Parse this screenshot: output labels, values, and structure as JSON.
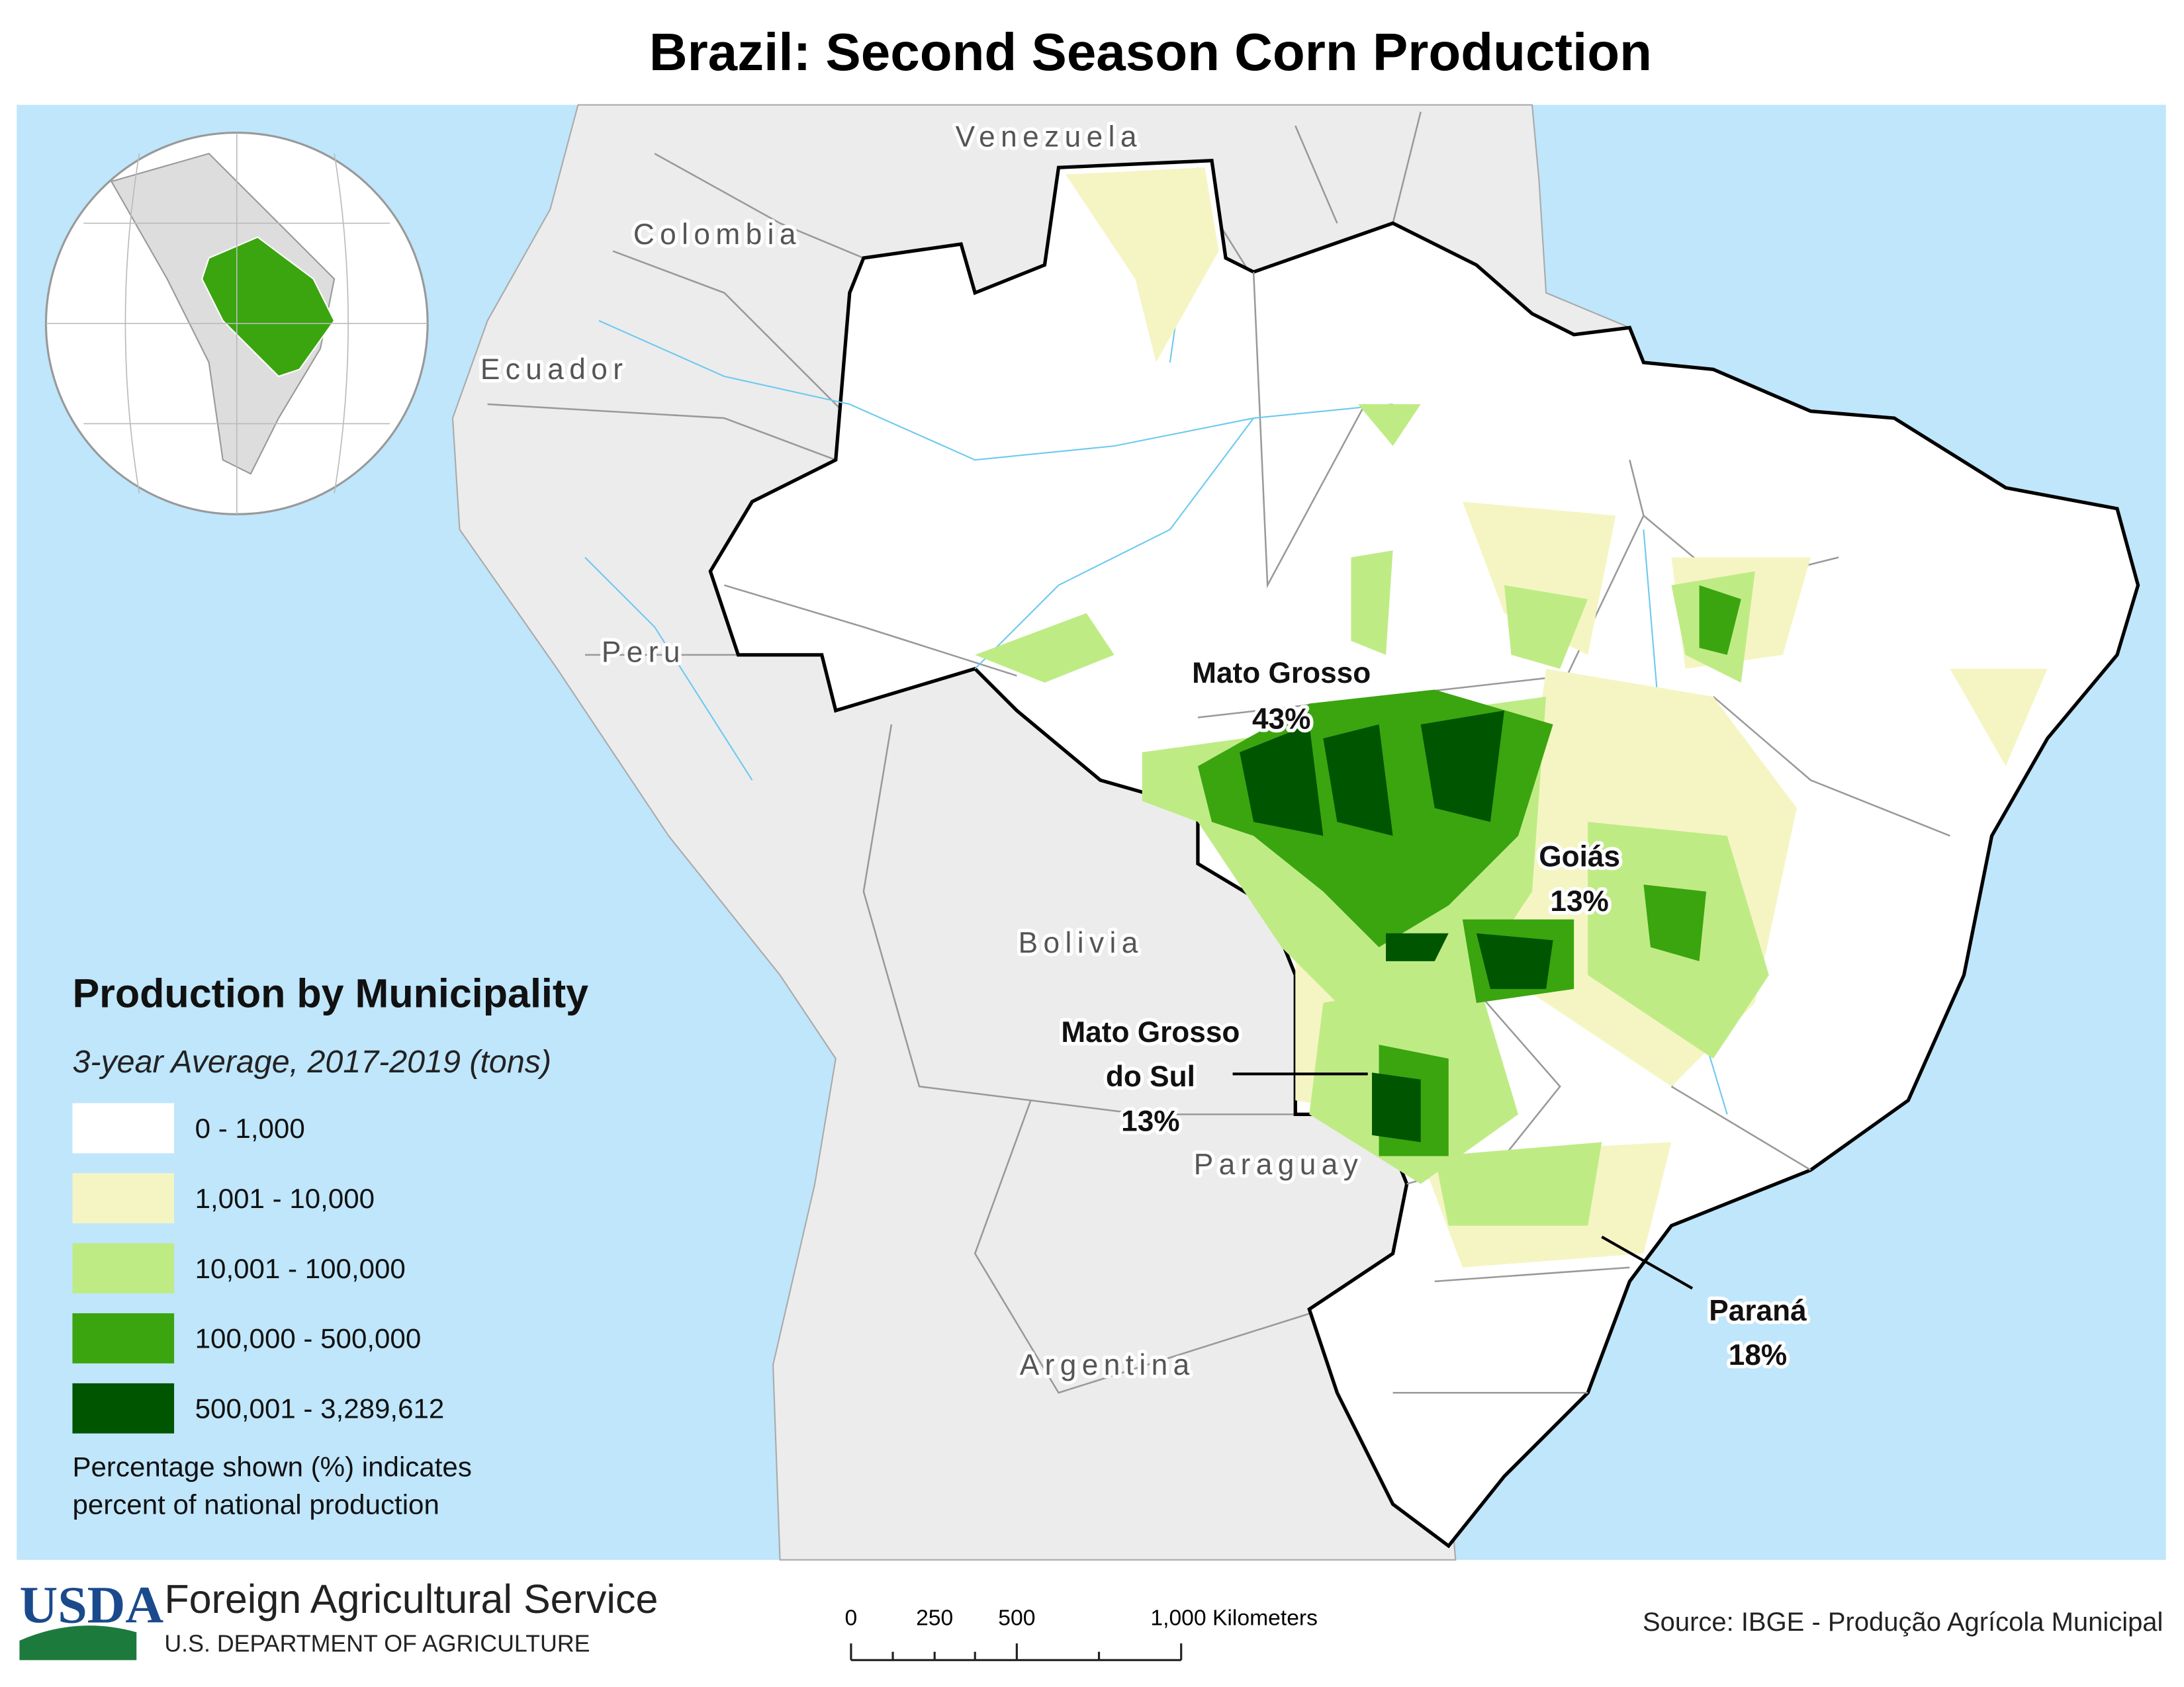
{
  "title": "Brazil: Second Season Corn Production",
  "countries": [
    "Venezuela",
    "Colombia",
    "Ecuador",
    "Peru",
    "Bolivia",
    "Paraguay",
    "Argentina"
  ],
  "states": [
    {
      "name": [
        "Mato Grosso"
      ],
      "share": "43%"
    },
    {
      "name": [
        "Goiás"
      ],
      "share": "13%"
    },
    {
      "name": [
        "Mato Grosso",
        "do Sul"
      ],
      "share": "13%"
    },
    {
      "name": [
        "Paraná"
      ],
      "share": "18%"
    }
  ],
  "legend": {
    "title": "Production by Municipality",
    "subtitle": "3-year Average, 2017-2019 (tons)",
    "classes": [
      {
        "label": "0 - 1,000",
        "color": "#ffffff"
      },
      {
        "label": "1,001 - 10,000",
        "color": "#f5f5c4"
      },
      {
        "label": "10,001 - 100,000",
        "color": "#bfeb85"
      },
      {
        "label": "100,000 - 500,000",
        "color": "#3aa50f"
      },
      {
        "label": "500,001 - 3,289,612",
        "color": "#005500"
      }
    ],
    "note": [
      "Percentage shown (%) indicates",
      "percent of national production"
    ]
  },
  "scale_bar": [
    "0",
    "250",
    "500",
    "1,000 Kilometers"
  ],
  "footer": {
    "logo": "USDA",
    "agency": "Foreign Agricultural Service",
    "department": "U.S. DEPARTMENT OF AGRICULTURE",
    "source": "Source: IBGE - Produção Agrícola Municipal"
  }
}
